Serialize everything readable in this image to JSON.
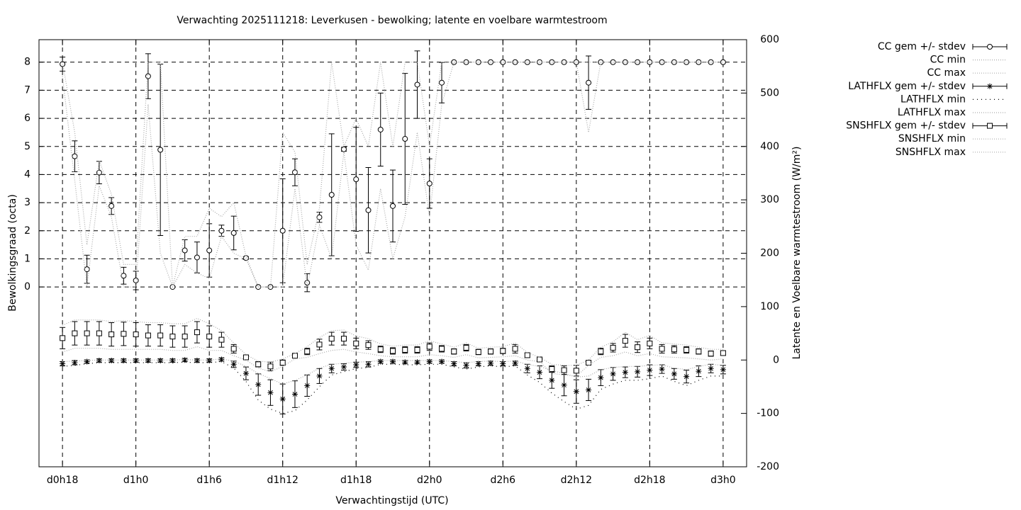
{
  "chart_data": {
    "type": "errorbar",
    "title": "Verwachting 2025111218: Leverkusen - bewolking; latente en voelbare warmtestroom",
    "xlabel": "Verwachtingstijd (UTC)",
    "ylabel": "Bewolkingsgraad (octa)",
    "y2label": "Latente en Voelbare warmtestroom (W/m²)",
    "categories": [
      "d0h18",
      null,
      null,
      null,
      null,
      null,
      "d1h0",
      null,
      null,
      null,
      null,
      null,
      "d1h6",
      null,
      null,
      null,
      null,
      null,
      "d1h12",
      null,
      null,
      null,
      null,
      null,
      "d1h18",
      null,
      null,
      null,
      null,
      null,
      "d2h0",
      null,
      null,
      null,
      null,
      null,
      "d2h6",
      null,
      null,
      null,
      null,
      null,
      "d2h12",
      null,
      null,
      null,
      null,
      null,
      "d2h18",
      null,
      null,
      null,
      null,
      null,
      "d3h0"
    ],
    "ylim": [
      -6.4,
      8.8
    ],
    "yticks": [
      0,
      1,
      2,
      3,
      4,
      5,
      6,
      7,
      8
    ],
    "y2lim": [
      -200,
      600
    ],
    "y2ticks": [
      -200,
      -100,
      0,
      100,
      200,
      300,
      400,
      500,
      600
    ],
    "grid": true,
    "legend": "right",
    "series": [
      {
        "name": "CC gem +/- stdev",
        "style": "errorbars",
        "marker": "circle",
        "color": "#000000",
        "axis": "y",
        "values": [
          7.93,
          4.65,
          0.63,
          4.07,
          2.88,
          0.4,
          0.23,
          7.5,
          4.88,
          0,
          1.3,
          1.05,
          1.3,
          2.0,
          1.92,
          1.03,
          0,
          0,
          2.0,
          4.08,
          0.15,
          2.48,
          3.28,
          4.9,
          3.83,
          2.73,
          5.6,
          2.88,
          5.27,
          7.2,
          3.68,
          7.27,
          8,
          8,
          8,
          8,
          8,
          8,
          8,
          8,
          8,
          8,
          8,
          7.27,
          8,
          8,
          8,
          8,
          8,
          8,
          8,
          8,
          8,
          8,
          8
        ],
        "errors": [
          0.25,
          0.55,
          0.5,
          0.4,
          0.3,
          0.3,
          0.33,
          0.8,
          3.05,
          0,
          0.38,
          0.55,
          0.95,
          0.2,
          0.6,
          0.05,
          0,
          0,
          1.85,
          0.48,
          0.32,
          0.18,
          2.17,
          0.07,
          1.85,
          1.52,
          1.3,
          1.28,
          2.33,
          1.2,
          0.88,
          0.72,
          0,
          0,
          0,
          0,
          0,
          0,
          0,
          0,
          0,
          0,
          0,
          0.95,
          0,
          0,
          0,
          0,
          0,
          0,
          0,
          0,
          0,
          0,
          0
        ]
      },
      {
        "name": "CC min",
        "style": "dotted",
        "color": "#aaaaaa",
        "axis": "y",
        "values": [
          7.5,
          3.8,
          0,
          3.6,
          2.5,
          0,
          0,
          6.5,
          1.2,
          0,
          0.8,
          0.5,
          0.3,
          1.8,
          1.2,
          1,
          0,
          0,
          0,
          3.5,
          0,
          2.2,
          1,
          4.8,
          1.5,
          0.6,
          3.5,
          1,
          2.5,
          5.5,
          2.5,
          6.5,
          8,
          8,
          8,
          8,
          8,
          8,
          8,
          8,
          8,
          8,
          8,
          5.5,
          8,
          8,
          8,
          8,
          8,
          8,
          8,
          8,
          8,
          8,
          8
        ]
      },
      {
        "name": "CC max",
        "style": "dotted",
        "color": "#aaaaaa",
        "axis": "y",
        "values": [
          8,
          5.5,
          1.5,
          4.5,
          3.3,
          0.8,
          0.8,
          8,
          8,
          0,
          1.8,
          1.8,
          2.8,
          2.5,
          3,
          1.1,
          0,
          0,
          5.5,
          4.8,
          0.8,
          2.8,
          8,
          5,
          6,
          5,
          8,
          5,
          8,
          8,
          5,
          8,
          8,
          8,
          8,
          8,
          8,
          8,
          8,
          8,
          8,
          8,
          8,
          8,
          8,
          8,
          8,
          8,
          8,
          8,
          8,
          8,
          8,
          8,
          8
        ]
      },
      {
        "name": "LATHFLX gem +/- stdev",
        "style": "errorbars",
        "marker": "asterisk",
        "color": "#000000",
        "axis": "y2",
        "values": [
          -7,
          -5,
          -3,
          -1,
          -1,
          -1,
          -1,
          -1,
          -1,
          -1,
          0,
          -1,
          -1,
          1,
          -8,
          -25,
          -46,
          -61,
          -73,
          -64,
          -48,
          -30,
          -16,
          -13,
          -9,
          -8,
          -3,
          -3,
          -4,
          -4,
          -3,
          -3,
          -7,
          -10,
          -7,
          -6,
          -7,
          -6,
          -16,
          -23,
          -38,
          -47,
          -59,
          -56,
          -33,
          -26,
          -23,
          -22,
          -19,
          -17,
          -26,
          -31,
          -21,
          -16,
          -18
        ],
        "errors": [
          4,
          4,
          3,
          3,
          3,
          3,
          3,
          3,
          3,
          3,
          3,
          3,
          3,
          3,
          6,
          12,
          20,
          24,
          28,
          25,
          20,
          14,
          8,
          6,
          5,
          5,
          3,
          3,
          3,
          3,
          3,
          3,
          4,
          5,
          4,
          4,
          4,
          4,
          8,
          12,
          15,
          20,
          22,
          20,
          15,
          12,
          10,
          10,
          10,
          8,
          10,
          12,
          10,
          8,
          8
        ]
      },
      {
        "name": "LATHFLX min",
        "style": "dotted",
        "color": "#000000",
        "axis": "y2",
        "values": [
          -12,
          -10,
          -7,
          -5,
          -5,
          -5,
          -5,
          -5,
          -5,
          -5,
          -4,
          -5,
          -5,
          -3,
          -15,
          -40,
          -75,
          -92,
          -100,
          -95,
          -75,
          -50,
          -28,
          -22,
          -16,
          -14,
          -8,
          -8,
          -9,
          -9,
          -8,
          -8,
          -13,
          -17,
          -13,
          -11,
          -13,
          -11,
          -28,
          -42,
          -62,
          -78,
          -92,
          -85,
          -55,
          -45,
          -38,
          -38,
          -35,
          -30,
          -40,
          -48,
          -38,
          -30,
          -30
        ]
      },
      {
        "name": "LATHFLX max",
        "style": "dotted",
        "color": "#aaaaaa",
        "axis": "y2",
        "values": [
          -3,
          -2,
          -1,
          0,
          0,
          0,
          0,
          0,
          0,
          0,
          1,
          0,
          0,
          2,
          -2,
          -12,
          -25,
          -35,
          -45,
          -38,
          -28,
          -15,
          -8,
          -6,
          -4,
          -3,
          -1,
          -1,
          -1,
          -1,
          -1,
          -1,
          -3,
          -5,
          -3,
          -2,
          -3,
          -2,
          -8,
          -12,
          -20,
          -25,
          -32,
          -30,
          -18,
          -14,
          -12,
          -12,
          -10,
          -9,
          -15,
          -18,
          -12,
          -8,
          -10
        ]
      },
      {
        "name": "SNSHFLX gem +/- stdev",
        "style": "errorbars",
        "marker": "square",
        "color": "#000000",
        "axis": "y2",
        "values": [
          41,
          50,
          50,
          50,
          48,
          49,
          48,
          46,
          46,
          44,
          44,
          52,
          44,
          38,
          21,
          5,
          -8,
          -12,
          -5,
          8,
          16,
          29,
          40,
          40,
          31,
          28,
          20,
          17,
          19,
          19,
          25,
          21,
          16,
          23,
          15,
          16,
          17,
          21,
          9,
          1,
          -17,
          -19,
          -20,
          -5,
          16,
          23,
          36,
          24,
          31,
          21,
          20,
          19,
          16,
          12,
          13
        ],
        "errors": [
          20,
          22,
          22,
          22,
          22,
          22,
          22,
          20,
          20,
          20,
          20,
          20,
          20,
          14,
          8,
          3,
          5,
          8,
          5,
          3,
          6,
          10,
          12,
          12,
          10,
          8,
          6,
          6,
          6,
          6,
          7,
          6,
          5,
          6,
          5,
          5,
          5,
          8,
          4,
          3,
          6,
          8,
          10,
          3,
          6,
          8,
          12,
          10,
          10,
          8,
          7,
          6,
          5,
          5,
          4
        ]
      },
      {
        "name": "SNSHFLX min",
        "style": "dotted",
        "color": "#aaaaaa",
        "axis": "y2",
        "values": [
          15,
          22,
          22,
          22,
          20,
          20,
          20,
          20,
          20,
          18,
          18,
          25,
          18,
          18,
          8,
          0,
          -15,
          -22,
          -12,
          2,
          5,
          12,
          18,
          20,
          15,
          12,
          8,
          6,
          6,
          6,
          10,
          8,
          5,
          10,
          4,
          5,
          6,
          8,
          0,
          -3,
          -25,
          -28,
          -30,
          -10,
          5,
          8,
          15,
          8,
          12,
          6,
          5,
          4,
          2,
          0,
          2
        ]
      },
      {
        "name": "SNSHFLX max",
        "style": "dotted",
        "color": "#aaaaaa",
        "axis": "y2",
        "values": [
          65,
          75,
          75,
          75,
          72,
          74,
          72,
          70,
          70,
          68,
          68,
          78,
          68,
          55,
          32,
          10,
          -2,
          -4,
          2,
          12,
          25,
          42,
          55,
          56,
          45,
          40,
          30,
          26,
          28,
          28,
          36,
          30,
          24,
          32,
          22,
          24,
          25,
          32,
          14,
          5,
          -8,
          -10,
          -10,
          0,
          24,
          34,
          52,
          38,
          46,
          32,
          30,
          28,
          24,
          20,
          20
        ]
      }
    ]
  }
}
